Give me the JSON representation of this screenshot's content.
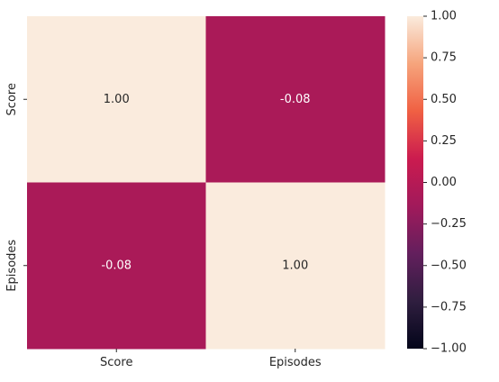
{
  "chart_data": {
    "type": "heatmap",
    "title": "",
    "xlabel": "",
    "ylabel": "",
    "x_categories": [
      "Score",
      "Episodes"
    ],
    "y_categories": [
      "Score",
      "Episodes"
    ],
    "values": [
      [
        1.0,
        -0.08
      ],
      [
        -0.08,
        1.0
      ]
    ],
    "annotation_format": "0.00",
    "colorbar": {
      "vmin": -1.0,
      "vmax": 1.0,
      "ticks": [
        1.0,
        0.75,
        0.5,
        0.25,
        0.0,
        -0.25,
        -0.5,
        -0.75,
        -1.0
      ],
      "tick_labels": [
        "1.00",
        "0.75",
        "0.50",
        "0.25",
        "0.00",
        "−0.25",
        "−0.50",
        "−0.75",
        "−1.00"
      ],
      "colormap": "rocket",
      "colormap_stops": [
        "#03051a",
        "#2f1e3f",
        "#631f5d",
        "#a11a5b",
        "#cb1b4f",
        "#f06043",
        "#f6a47c",
        "#faebdd"
      ]
    },
    "grid": false,
    "legend": "colorbar-right"
  }
}
